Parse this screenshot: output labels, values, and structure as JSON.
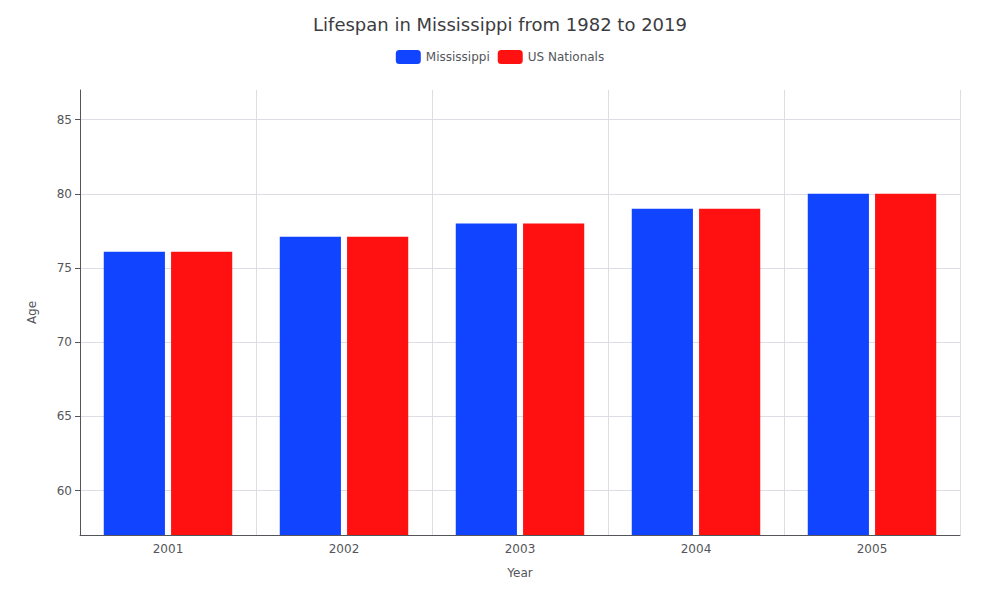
{
  "chart_data": {
    "type": "bar",
    "title": "Lifespan in Mississippi from 1982 to 2019",
    "x_label": "Year",
    "y_label": "Age",
    "categories": [
      "2001",
      "2002",
      "2003",
      "2004",
      "2005"
    ],
    "series": [
      {
        "name": "Mississippi",
        "color": "#1144ff",
        "values": [
          76.1,
          77.1,
          78.0,
          79.0,
          80.0
        ]
      },
      {
        "name": "US Nationals",
        "color": "#ff1111",
        "values": [
          76.1,
          77.1,
          78.0,
          79.0,
          80.0
        ]
      }
    ],
    "ylim": [
      57,
      87
    ],
    "yticks": [
      60,
      65,
      70,
      75,
      80,
      85
    ],
    "grid": true,
    "legend": "top"
  }
}
